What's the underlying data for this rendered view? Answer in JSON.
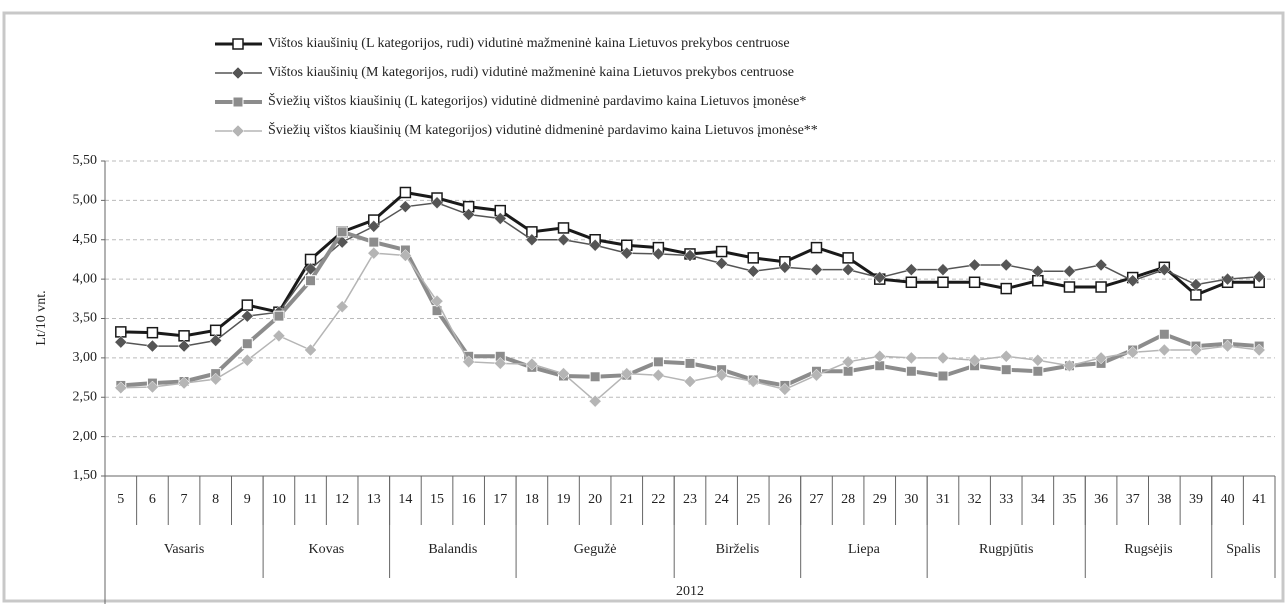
{
  "chart_data": {
    "type": "line",
    "y_label": "Lt/10 vnt.",
    "categories": [
      "5",
      "6",
      "7",
      "8",
      "9",
      "10",
      "11",
      "12",
      "13",
      "14",
      "15",
      "16",
      "17",
      "18",
      "19",
      "20",
      "21",
      "22",
      "23",
      "24",
      "25",
      "26",
      "27",
      "28",
      "29",
      "30",
      "31",
      "32",
      "33",
      "34",
      "35",
      "36",
      "37",
      "38",
      "39",
      "40",
      "41"
    ],
    "months": [
      "Vasaris",
      "Vasaris",
      "Vasaris",
      "Vasaris",
      "Vasaris",
      "Kovas",
      "Kovas",
      "Kovas",
      "Kovas",
      "Balandis",
      "Balandis",
      "Balandis",
      "Balandis",
      "Gegužė",
      "Gegužė",
      "Gegužė",
      "Gegužė",
      "Gegužė",
      "Birželis",
      "Birželis",
      "Birželis",
      "Birželis",
      "Liepa",
      "Liepa",
      "Liepa",
      "Liepa",
      "Rugpjūtis",
      "Rugpjūtis",
      "Rugpjūtis",
      "Rugpjūtis",
      "Rugpjūtis",
      "Rugsėjis",
      "Rugsėjis",
      "Rugsėjis",
      "Rugsėjis",
      "Spalis",
      "Spalis"
    ],
    "year": "2012",
    "ylim": [
      1.5,
      5.5
    ],
    "yticks": [
      {
        "value": 1.5,
        "label": "1,50"
      },
      {
        "value": 2,
        "label": "2,00"
      },
      {
        "value": 2.5,
        "label": "2,50"
      },
      {
        "value": 3,
        "label": "3,00"
      },
      {
        "value": 3.5,
        "label": "3,50"
      },
      {
        "value": 4,
        "label": "4,00"
      },
      {
        "value": 4.5,
        "label": "4,50"
      },
      {
        "value": 5,
        "label": "5,00"
      },
      {
        "value": 5.5,
        "label": "5,50"
      }
    ],
    "grid": true,
    "series": [
      {
        "name": "Vištos kiaušinių (L kategorijos, rudi) vidutinė mažmeninė kaina Lietuvos prekybos centruose",
        "color": "#1a1a1a",
        "marker": "square",
        "values": [
          3.33,
          3.32,
          3.28,
          3.35,
          3.67,
          3.58,
          4.25,
          4.6,
          4.75,
          5.1,
          5.03,
          4.92,
          4.87,
          4.6,
          4.65,
          4.5,
          4.43,
          4.4,
          4.32,
          4.35,
          4.27,
          4.22,
          4.4,
          4.27,
          4.0,
          3.96,
          3.96,
          3.96,
          3.88,
          3.98,
          3.9,
          3.9,
          4.02,
          4.15,
          3.8,
          3.96,
          3.96
        ]
      },
      {
        "name": "Vištos kiaušinių (M kategorijos, rudi) vidutinė mažmeninė kaina Lietuvos prekybos centruose",
        "color": "#555555",
        "marker": "diamond",
        "values": [
          3.2,
          3.15,
          3.15,
          3.22,
          3.53,
          3.58,
          4.13,
          4.47,
          4.67,
          4.92,
          4.97,
          4.82,
          4.77,
          4.5,
          4.5,
          4.43,
          4.33,
          4.32,
          4.3,
          4.2,
          4.1,
          4.15,
          4.12,
          4.12,
          4.02,
          4.12,
          4.12,
          4.18,
          4.18,
          4.1,
          4.1,
          4.18,
          3.98,
          4.12,
          3.93,
          4.0,
          4.03
        ]
      },
      {
        "name": "Šviežių vištos kiaušinių (L kategorijos) vidutinė didmeninė pardavimo kaina Lietuvos įmonėse*",
        "color": "#8c8c8c",
        "marker": "square-filled",
        "values": [
          2.65,
          2.68,
          2.7,
          2.8,
          3.18,
          3.53,
          3.98,
          4.6,
          4.47,
          4.37,
          3.6,
          3.02,
          3.02,
          2.88,
          2.77,
          2.76,
          2.78,
          2.95,
          2.93,
          2.85,
          2.72,
          2.65,
          2.83,
          2.83,
          2.9,
          2.83,
          2.77,
          2.9,
          2.85,
          2.83,
          2.9,
          2.93,
          3.1,
          3.3,
          3.15,
          3.18,
          3.15
        ]
      },
      {
        "name": "Šviežių vištos kiaušinių (M kategorijos) vidutinė didmeninė pardavimo kaina Lietuvos įmonėse**",
        "color": "#b5b5b5",
        "marker": "diamond",
        "values": [
          2.62,
          2.63,
          2.68,
          2.73,
          2.97,
          3.28,
          3.1,
          3.65,
          4.33,
          4.3,
          3.72,
          2.95,
          2.93,
          2.92,
          2.8,
          2.45,
          2.8,
          2.78,
          2.7,
          2.78,
          2.7,
          2.6,
          2.78,
          2.95,
          3.02,
          3.0,
          3.0,
          2.97,
          3.02,
          2.97,
          2.9,
          3.0,
          3.07,
          3.1,
          3.1,
          3.15,
          3.1
        ]
      }
    ]
  }
}
